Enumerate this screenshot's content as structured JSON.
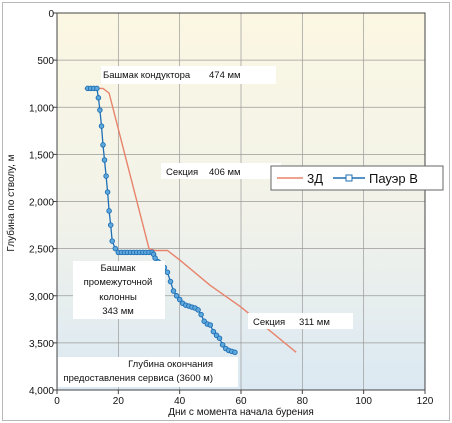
{
  "chart_data": {
    "type": "line",
    "xlabel": "Дни с момента начала бурения",
    "ylabel": "Глубина по стволу, м",
    "xlim": [
      0,
      120
    ],
    "ylim": [
      4000,
      0
    ],
    "x_ticks": [
      "0",
      "20",
      "40",
      "60",
      "80",
      "100",
      "120"
    ],
    "y_ticks": [
      "0",
      "500",
      "1,000",
      "1,500",
      "2,000",
      "2,500",
      "3,000",
      "3,500",
      "4,000"
    ],
    "grid": true,
    "legend_position": "right",
    "series": [
      {
        "name": "3Д",
        "color": "#e8836b",
        "marker": "none",
        "points": [
          [
            9,
            800
          ],
          [
            15,
            800
          ],
          [
            17,
            850
          ],
          [
            30,
            2500
          ],
          [
            32,
            2520
          ],
          [
            36,
            2520
          ],
          [
            40,
            2620
          ],
          [
            50,
            2890
          ],
          [
            60,
            3120
          ],
          [
            78,
            3600
          ]
        ]
      },
      {
        "name": "Пауэр В",
        "color": "#1f6fb5",
        "marker": "square",
        "points": [
          [
            10,
            800
          ],
          [
            11,
            800
          ],
          [
            12,
            800
          ],
          [
            13,
            800
          ],
          [
            13.5,
            900
          ],
          [
            14,
            1030
          ],
          [
            14.5,
            1200
          ],
          [
            15,
            1400
          ],
          [
            15.5,
            1560
          ],
          [
            16,
            1730
          ],
          [
            16.5,
            1900
          ],
          [
            17,
            2100
          ],
          [
            17.5,
            2250
          ],
          [
            18,
            2420
          ],
          [
            19,
            2500
          ],
          [
            20,
            2540
          ],
          [
            21,
            2540
          ],
          [
            22,
            2540
          ],
          [
            23,
            2540
          ],
          [
            24,
            2540
          ],
          [
            25,
            2540
          ],
          [
            26,
            2540
          ],
          [
            27,
            2540
          ],
          [
            28,
            2540
          ],
          [
            29,
            2540
          ],
          [
            30,
            2540
          ],
          [
            31,
            2540
          ],
          [
            31.5,
            2560
          ],
          [
            32,
            2600
          ],
          [
            33,
            2640
          ],
          [
            34,
            2680
          ],
          [
            35,
            2700
          ],
          [
            36,
            2750
          ],
          [
            37,
            2850
          ],
          [
            38,
            2950
          ],
          [
            39,
            3000
          ],
          [
            40,
            3040
          ],
          [
            41,
            3080
          ],
          [
            42,
            3100
          ],
          [
            43,
            3110
          ],
          [
            44,
            3120
          ],
          [
            45,
            3130
          ],
          [
            46,
            3150
          ],
          [
            47,
            3200
          ],
          [
            48,
            3270
          ],
          [
            49,
            3300
          ],
          [
            50,
            3310
          ],
          [
            51,
            3380
          ],
          [
            52,
            3420
          ],
          [
            53,
            3450
          ],
          [
            54,
            3520
          ],
          [
            55,
            3560
          ],
          [
            56,
            3580
          ],
          [
            57,
            3590
          ],
          [
            58,
            3600
          ]
        ]
      }
    ],
    "annotations": [
      {
        "text": "Башмак кондуктора",
        "extra": "474 мм"
      },
      {
        "text": "Секция",
        "extra": "406 мм"
      },
      {
        "text": "Башмак промежуточной колонны",
        "extra": "343 мм"
      },
      {
        "text": "Секция",
        "extra": "311 мм"
      },
      {
        "text": "Глубина окончания предоставления сервиса (3600 м)",
        "extra": ""
      }
    ]
  },
  "annotation_lines": {
    "shoe_conductor": "Башмак кондуктора",
    "shoe_conductor_size": "474 мм",
    "section_1": "Секция",
    "section_1_size": "406 мм",
    "shoe_intermediate_1": "Башмак",
    "shoe_intermediate_2": "промежуточной",
    "shoe_intermediate_3": "колонны",
    "shoe_intermediate_size": "343 мм",
    "section_2": "Секция",
    "section_2_size": "311 мм",
    "td_line_1": "Глубина окончания",
    "td_line_2": "предоставления сервиса (3600 м)"
  }
}
